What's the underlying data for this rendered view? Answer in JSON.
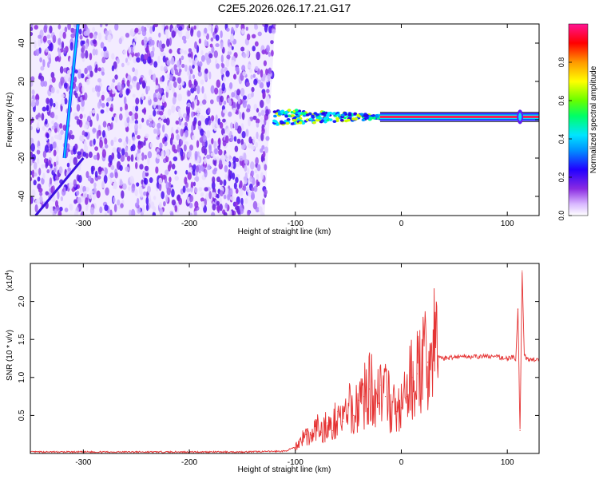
{
  "figure_title": "C2E5.2026.026.17.21.G17",
  "chart_data": [
    {
      "type": "heatmap",
      "xlabel": "Height of straight line (km)",
      "ylabel": "Frequency (Hz)",
      "xlim": [
        -350,
        130
      ],
      "ylim": [
        -50,
        50
      ],
      "x_ticks": [
        -300,
        -200,
        -100,
        0,
        100
      ],
      "y_ticks": [
        -40,
        -20,
        0,
        20,
        40
      ],
      "grid": false,
      "colorbar": {
        "label": "Normalized spectral amplitude",
        "range": [
          0,
          1
        ],
        "ticks": [
          0.0,
          0.2,
          0.4,
          0.6,
          0.8
        ],
        "colors": [
          "#ffffff",
          "#d9b8ff",
          "#8a2be2",
          "#2200ff",
          "#0090ff",
          "#00e5ff",
          "#00ff66",
          "#66ff00",
          "#ffff00",
          "#ff9900",
          "#ff0000",
          "#ff1493"
        ]
      },
      "features": {
        "noise_region_x": [
          -350,
          -120
        ],
        "carrier_frequency_hz": 1.5,
        "carrier_start_x": -120,
        "diagonal_trace": {
          "x": [
            -318,
            -305
          ],
          "y": [
            -20,
            50
          ]
        }
      }
    },
    {
      "type": "line",
      "xlabel": "Height of straight line (km)",
      "ylabel": "SNR (10 * v/v)",
      "y_multiplier_label": "(x10",
      "y_multiplier_exp": "4",
      "xlim": [
        -350,
        130
      ],
      "ylim": [
        0,
        2.5
      ],
      "x_ticks": [
        -300,
        -200,
        -100,
        0,
        100
      ],
      "y_ticks": [
        0.5,
        1.0,
        1.5,
        2.0
      ],
      "grid": false,
      "series": [
        {
          "color": "#e53333",
          "x": [
            -350,
            -300,
            -250,
            -200,
            -150,
            -110,
            -100,
            -95,
            -90,
            -85,
            -80,
            -75,
            -70,
            -65,
            -60,
            -55,
            -50,
            -45,
            -40,
            -35,
            -30,
            -25,
            -20,
            -15,
            -10,
            -5,
            0,
            5,
            10,
            15,
            20,
            25,
            30,
            32,
            35,
            40,
            50,
            60,
            70,
            80,
            90,
            100,
            105,
            108,
            110,
            112,
            114,
            116,
            120,
            125,
            130
          ],
          "y": [
            0.02,
            0.02,
            0.02,
            0.02,
            0.02,
            0.03,
            0.08,
            0.18,
            0.25,
            0.2,
            0.35,
            0.28,
            0.4,
            0.3,
            0.55,
            0.42,
            0.6,
            0.5,
            0.7,
            0.75,
            0.85,
            0.8,
            0.9,
            0.75,
            0.65,
            0.55,
            0.6,
            0.75,
            1.0,
            1.05,
            1.15,
            1.2,
            1.35,
            1.45,
            1.28,
            1.25,
            1.27,
            1.28,
            1.27,
            1.28,
            1.27,
            1.25,
            1.27,
            1.22,
            1.9,
            0.3,
            2.4,
            1.3,
            1.22,
            1.24,
            1.23
          ]
        }
      ]
    }
  ]
}
